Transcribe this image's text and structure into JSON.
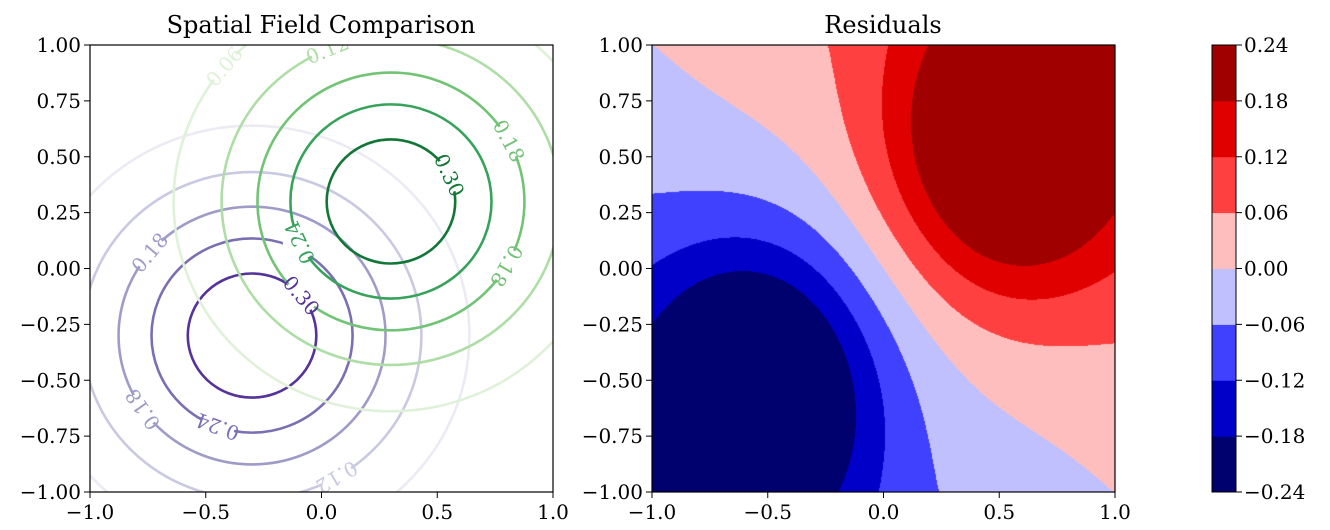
{
  "chart_data": [
    {
      "type": "contour",
      "title": "Spatial Field Comparison",
      "xlim": [
        -1.0,
        1.0
      ],
      "ylim": [
        -1.0,
        1.0
      ],
      "x_ticks": [
        "−1.0",
        "−0.5",
        "0.0",
        "0.5",
        "1.0"
      ],
      "y_ticks": [
        "1.00",
        "0.75",
        "0.50",
        "0.25",
        "0.00",
        "−0.25",
        "−0.50",
        "−0.75",
        "−1.00"
      ],
      "series": [
        {
          "colormap": "Purples",
          "center": [
            -0.3,
            -0.3
          ],
          "levels": [
            0.06,
            0.12,
            0.18,
            0.24,
            0.3
          ],
          "level_colors": [
            "#ecebf4",
            "#c9c9e2",
            "#9f9bc9",
            "#7b6fb3",
            "#55339a"
          ]
        },
        {
          "colormap": "Greens",
          "center": [
            0.3,
            0.3
          ],
          "levels": [
            0.06,
            0.12,
            0.18,
            0.24,
            0.3
          ],
          "level_colors": [
            "#dff1d8",
            "#aedea6",
            "#73c377",
            "#37a25a",
            "#127636"
          ]
        }
      ],
      "contour_labels": [
        {
          "text": "0.06",
          "series": 1,
          "level": 0
        },
        {
          "text": "0.12",
          "series": 1,
          "level": 1
        },
        {
          "text": "0.18",
          "series": 1,
          "level": 2
        },
        {
          "text": "0.30",
          "series": 1,
          "level": 4
        },
        {
          "text": "0.24",
          "series": 1,
          "level": 3
        },
        {
          "text": "0.18",
          "series": 1,
          "level": 2
        },
        {
          "text": "0.12",
          "series": 0,
          "level": 1
        },
        {
          "text": "0.06",
          "series": 1,
          "level": 0
        },
        {
          "text": "0.18",
          "series": 0,
          "level": 2
        },
        {
          "text": "0.30",
          "series": 0,
          "level": 4
        },
        {
          "text": "0.24",
          "series": 0,
          "level": 3
        },
        {
          "text": "0.18",
          "series": 0,
          "level": 2
        }
      ]
    },
    {
      "type": "filled-contour",
      "title": "Residuals",
      "xlim": [
        -1.0,
        1.0
      ],
      "ylim": [
        -1.0,
        1.0
      ],
      "x_ticks": [
        "−1.0",
        "−0.5",
        "0.0",
        "0.5",
        "1.0"
      ],
      "y_ticks": [
        "1.00",
        "0.75",
        "0.50",
        "0.25",
        "0.00",
        "−0.25",
        "−0.50",
        "−0.75",
        "−1.00"
      ],
      "levels": [
        -0.24,
        -0.18,
        -0.12,
        -0.06,
        0.0,
        0.06,
        0.12,
        0.18,
        0.24
      ],
      "band_colors": [
        "#00006e",
        "#0000c8",
        "#4040ff",
        "#c0c0ff",
        "#ffbebe",
        "#ff4040",
        "#e00000",
        "#a00000"
      ],
      "colormap": "seismic",
      "colorbar_ticks": [
        "0.24",
        "0.18",
        "0.12",
        "0.06",
        "0.00",
        "−0.06",
        "−0.12",
        "−0.18",
        "−0.24"
      ]
    }
  ]
}
